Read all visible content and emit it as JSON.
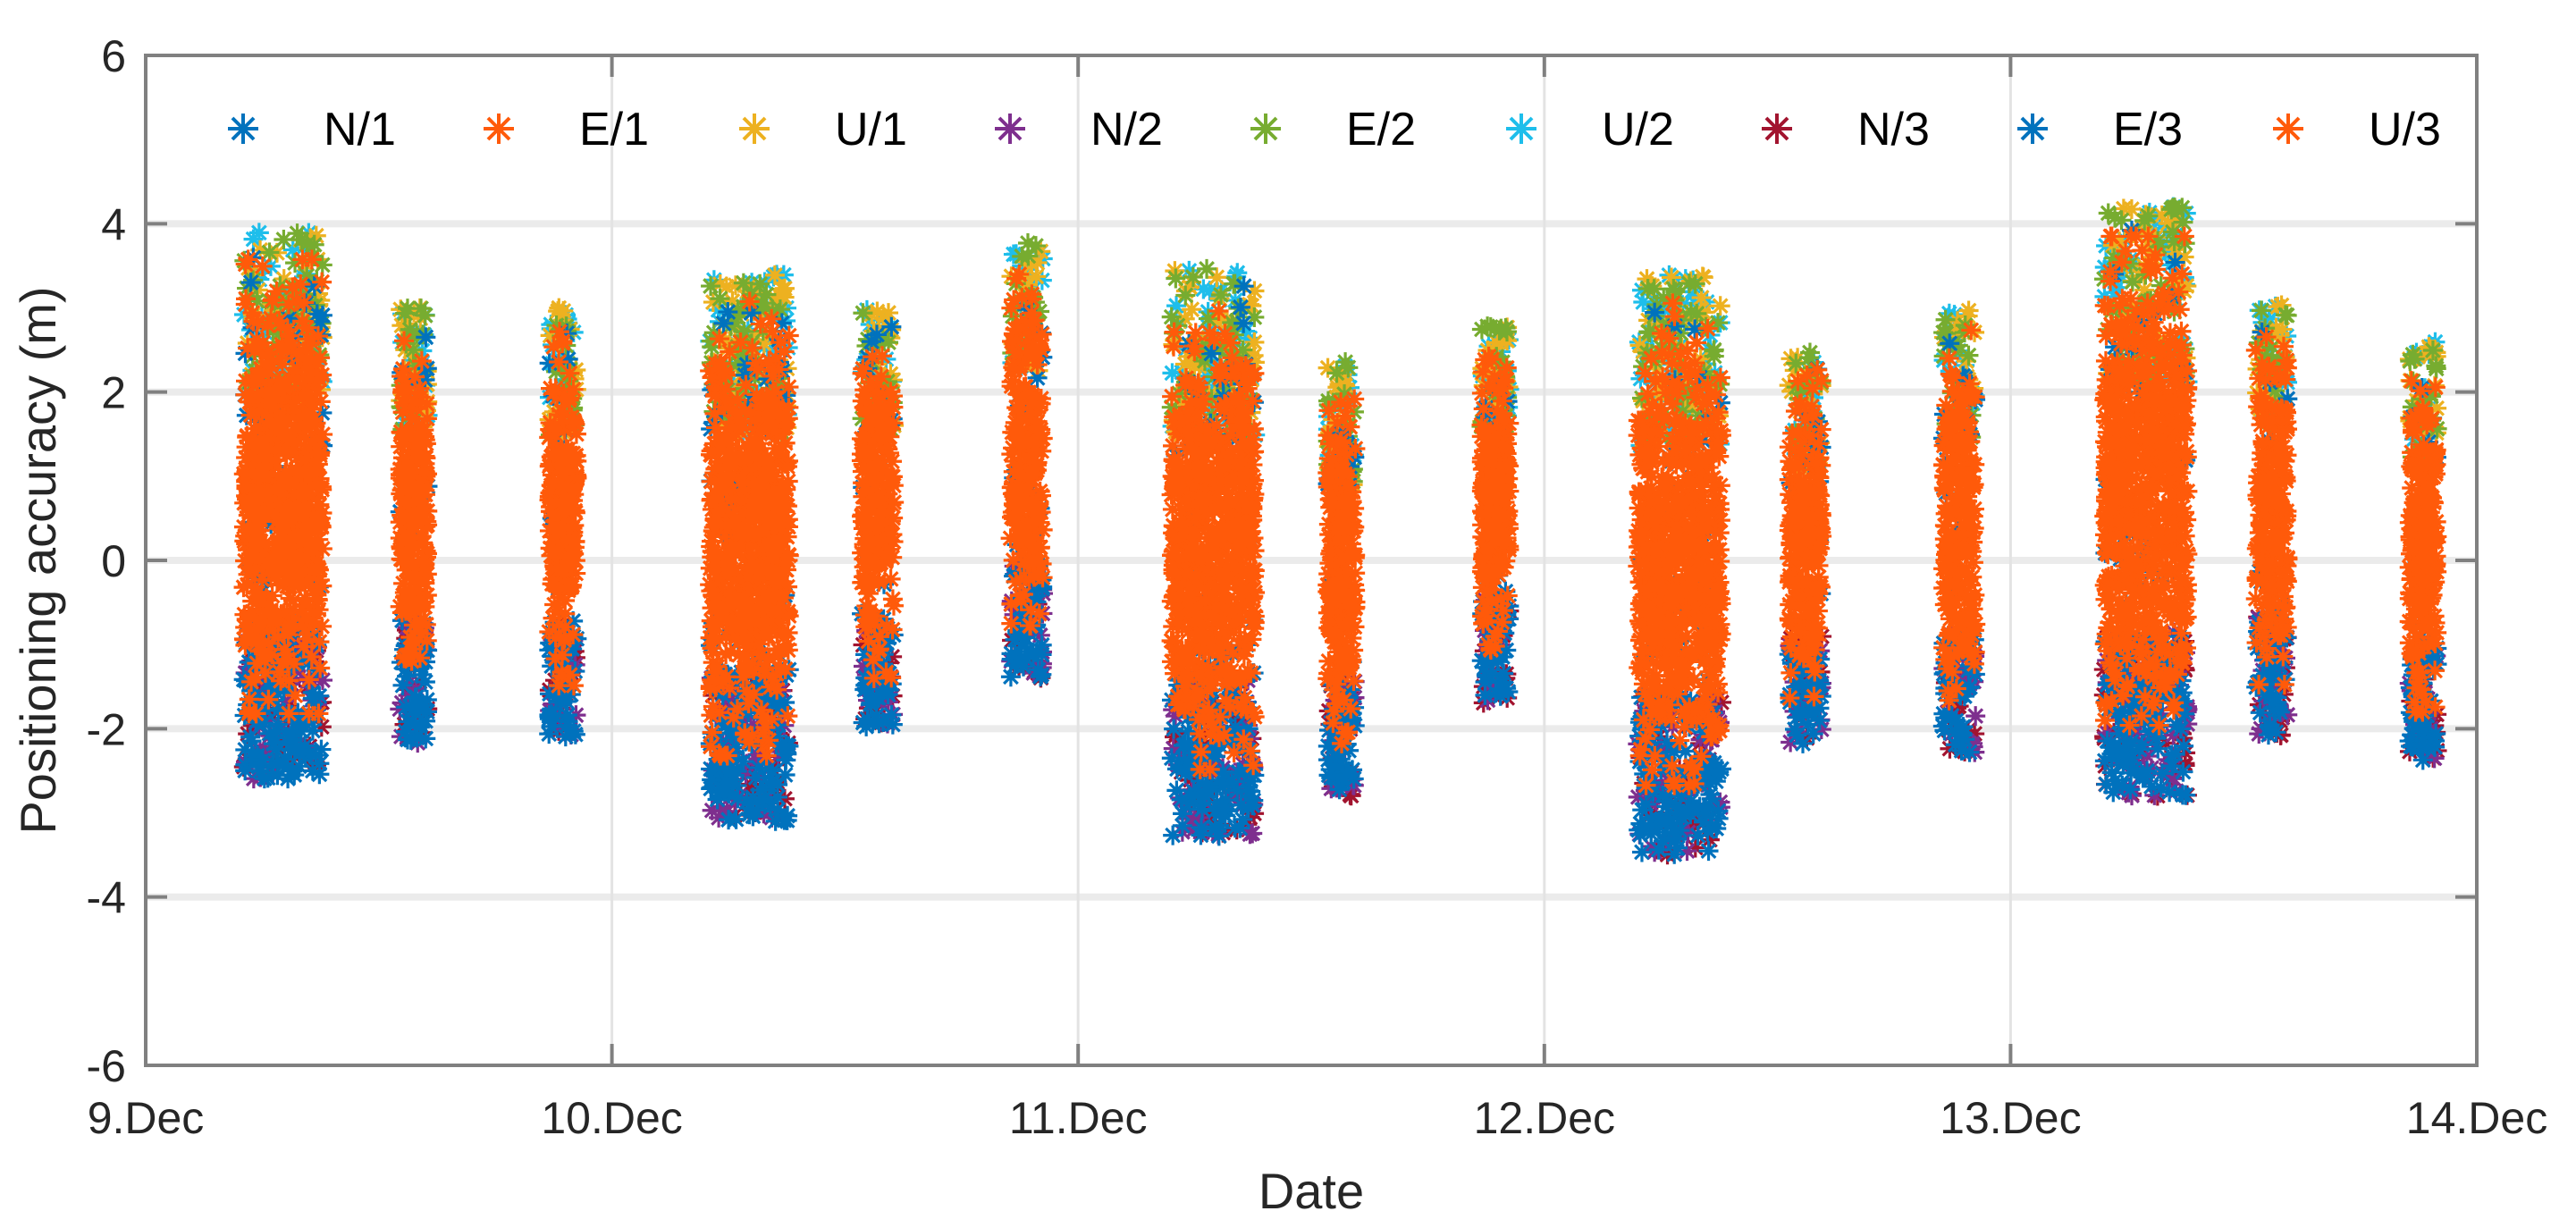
{
  "chart_data": {
    "type": "scatter",
    "title": "",
    "xlabel": "Date",
    "ylabel": "Positioning accuracy (m)",
    "xlim": [
      9,
      14
    ],
    "ylim": [
      -6,
      6
    ],
    "x_ticks": [
      {
        "value": 9,
        "label": "9.Dec"
      },
      {
        "value": 10,
        "label": "10.Dec"
      },
      {
        "value": 11,
        "label": "11.Dec"
      },
      {
        "value": 12,
        "label": "12.Dec"
      },
      {
        "value": 13,
        "label": "13.Dec"
      },
      {
        "value": 14,
        "label": "14.Dec"
      }
    ],
    "y_ticks": [
      {
        "value": 6,
        "label": "6"
      },
      {
        "value": 4,
        "label": "4"
      },
      {
        "value": 2,
        "label": "2"
      },
      {
        "value": 0,
        "label": "0"
      },
      {
        "value": -2,
        "label": "-2"
      },
      {
        "value": -4,
        "label": "-4"
      },
      {
        "value": -6,
        "label": "-6"
      }
    ],
    "grid": true,
    "legend_position": "top, horizontal, inside",
    "marker": "*",
    "series": [
      {
        "name": "N/1",
        "color": "#0072BD"
      },
      {
        "name": "E/1",
        "color": "#FF5A0A"
      },
      {
        "name": "U/1",
        "color": "#EDB120"
      },
      {
        "name": "N/2",
        "color": "#7E2F8E"
      },
      {
        "name": "E/2",
        "color": "#77AC30"
      },
      {
        "name": "U/2",
        "color": "#1EBEEB"
      },
      {
        "name": "N/3",
        "color": "#A2142F"
      },
      {
        "name": "E/3",
        "color": "#0072BD"
      },
      {
        "name": "U/3",
        "color": "#FF5A0A"
      }
    ],
    "sessions": [
      {
        "x_start": 9.19,
        "x_end": 9.4,
        "y_min": -2.6,
        "y_max": 3.9
      },
      {
        "x_start": 9.54,
        "x_end": 9.61,
        "y_min": -2.2,
        "y_max": 3.0
      },
      {
        "x_start": 9.86,
        "x_end": 9.93,
        "y_min": -2.1,
        "y_max": 3.0
      },
      {
        "x_start": 10.19,
        "x_end": 10.4,
        "y_min": -3.1,
        "y_max": 3.4
      },
      {
        "x_start": 10.53,
        "x_end": 10.61,
        "y_min": -2.0,
        "y_max": 3.0
      },
      {
        "x_start": 10.85,
        "x_end": 10.93,
        "y_min": -1.4,
        "y_max": 3.8
      },
      {
        "x_start": 11.18,
        "x_end": 11.4,
        "y_min": -3.3,
        "y_max": 3.5
      },
      {
        "x_start": 11.53,
        "x_end": 11.6,
        "y_min": -2.8,
        "y_max": 2.4
      },
      {
        "x_start": 11.86,
        "x_end": 11.93,
        "y_min": -1.7,
        "y_max": 2.8
      },
      {
        "x_start": 12.18,
        "x_end": 12.4,
        "y_min": -3.5,
        "y_max": 3.4
      },
      {
        "x_start": 12.52,
        "x_end": 12.6,
        "y_min": -2.2,
        "y_max": 2.5
      },
      {
        "x_start": 12.85,
        "x_end": 12.93,
        "y_min": -2.3,
        "y_max": 3.0
      },
      {
        "x_start": 13.18,
        "x_end": 13.4,
        "y_min": -2.8,
        "y_max": 4.2
      },
      {
        "x_start": 13.52,
        "x_end": 13.6,
        "y_min": -2.1,
        "y_max": 3.1
      },
      {
        "x_start": 13.85,
        "x_end": 13.92,
        "y_min": -2.4,
        "y_max": 2.6
      }
    ]
  }
}
